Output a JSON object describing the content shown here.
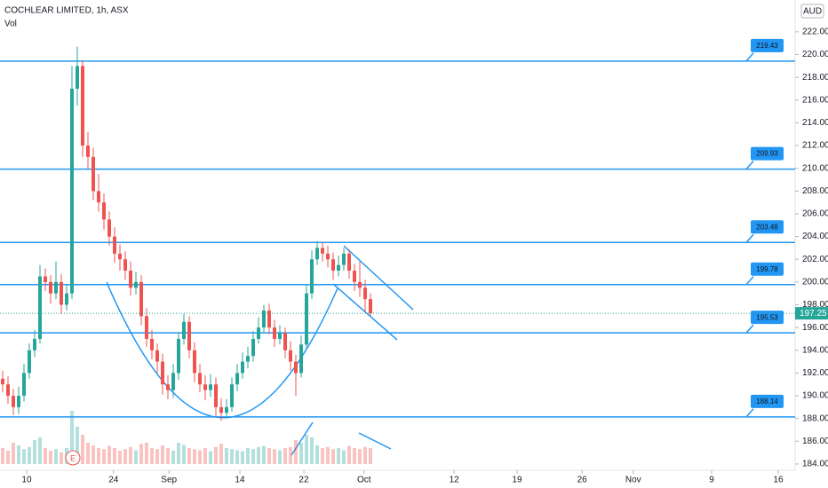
{
  "chart_data": {
    "type": "candlestick",
    "title": "COCHLEAR LIMITED, 1h, ASX",
    "volume_label": "Vol",
    "currency": "AUD",
    "event_marker": "E",
    "up_color": "#26a69a",
    "down_color": "#ef5350",
    "level_color": "#2196f3",
    "xlim": [
      -0.5,
      148.67
    ],
    "ylim": [
      183.45,
      224.8
    ],
    "xticks": [
      {
        "value": 4.5,
        "label": "10"
      },
      {
        "value": 20.8,
        "label": "24"
      },
      {
        "value": 31.2,
        "label": "Sep"
      },
      {
        "value": 44.5,
        "label": "14"
      },
      {
        "value": 56.5,
        "label": "22"
      },
      {
        "value": 67.8,
        "label": "Oct"
      },
      {
        "value": 84.7,
        "label": "12"
      },
      {
        "value": 96.5,
        "label": "19"
      },
      {
        "value": 108.7,
        "label": "26"
      },
      {
        "value": 118.3,
        "label": "Nov"
      },
      {
        "value": 133,
        "label": "9"
      },
      {
        "value": 145.5,
        "label": "16"
      }
    ],
    "yticks": [
      {
        "value": 184,
        "label": "184.00"
      },
      {
        "value": 186,
        "label": "186.00"
      },
      {
        "value": 188,
        "label": "188.00"
      },
      {
        "value": 190,
        "label": "190.00"
      },
      {
        "value": 192,
        "label": "192.00"
      },
      {
        "value": 194,
        "label": "194.00"
      },
      {
        "value": 196,
        "label": "196.00"
      },
      {
        "value": 198,
        "label": "198.00"
      },
      {
        "value": 200,
        "label": "200.00"
      },
      {
        "value": 202,
        "label": "202.00"
      },
      {
        "value": 204,
        "label": "204.00"
      },
      {
        "value": 206,
        "label": "206.00"
      },
      {
        "value": 208,
        "label": "208.00"
      },
      {
        "value": 210,
        "label": "210.00"
      },
      {
        "value": 212,
        "label": "212.00"
      },
      {
        "value": 214,
        "label": "214.00"
      },
      {
        "value": 216,
        "label": "216.00"
      },
      {
        "value": 218,
        "label": "218.00"
      },
      {
        "value": 220,
        "label": "220.00"
      },
      {
        "value": 222,
        "label": "222.00"
      }
    ],
    "levels": [
      219.43,
      209.93,
      203.48,
      199.78,
      195.53,
      188.14
    ],
    "open": [
      191.5,
      191,
      190,
      189,
      190,
      192,
      194,
      195,
      200.5,
      200,
      199,
      200,
      198,
      199,
      217,
      219,
      212,
      211,
      208,
      207,
      205.5,
      204,
      202.5,
      202,
      201,
      199.5,
      200,
      197,
      195,
      194,
      193,
      191,
      190.5,
      192,
      195,
      196.5,
      194,
      192,
      191,
      190.5,
      191,
      189,
      188.5,
      189,
      191,
      192,
      193,
      193.5,
      195,
      196,
      197.5,
      196,
      195,
      195.5,
      194,
      193,
      192,
      194.5,
      199,
      202,
      203,
      202.5,
      202,
      201,
      201.5,
      202.5,
      201,
      200,
      199.5,
      198.5
    ],
    "high": [
      192.2,
      191.7,
      190.6,
      190.8,
      192.8,
      194.6,
      195.8,
      201.5,
      201.2,
      200.6,
      201.8,
      200.7,
      199.8,
      219,
      220.7,
      219.5,
      213.2,
      211.8,
      209.5,
      207.8,
      206.2,
      204.8,
      203.3,
      202.7,
      201.8,
      200.9,
      200.6,
      197.7,
      195.8,
      194.6,
      193.7,
      191.8,
      192.8,
      195.6,
      197.2,
      197,
      194.7,
      192.8,
      191.8,
      191.9,
      191.6,
      189.8,
      189.7,
      191.6,
      192.8,
      193.8,
      194.3,
      195.7,
      196.9,
      198,
      198.1,
      196.7,
      196.2,
      196,
      194.8,
      193.6,
      195.3,
      199.8,
      202.8,
      203.6,
      203.5,
      203.2,
      202.6,
      202.3,
      203,
      202.9,
      201.6,
      201.8,
      200.2,
      199
    ],
    "low": [
      190.3,
      189.3,
      188.3,
      188.4,
      189.5,
      191.5,
      193.4,
      194.6,
      199.2,
      198.1,
      198.5,
      197.2,
      197.5,
      198.5,
      215.5,
      211,
      210,
      207.2,
      206.2,
      204.6,
      203.2,
      201.7,
      201,
      200.2,
      198.8,
      198.9,
      196.2,
      194.3,
      193.2,
      192,
      190.1,
      189.7,
      189.8,
      191.4,
      194.5,
      193.3,
      191.2,
      190.3,
      189.6,
      189.9,
      188.2,
      187.8,
      188,
      188.6,
      190.4,
      191.5,
      192.4,
      193,
      194.6,
      195.5,
      195.4,
      194.3,
      194.5,
      193.3,
      192.2,
      190,
      191.6,
      194,
      198.5,
      201.5,
      201.8,
      201.3,
      200.2,
      200.5,
      201,
      200.3,
      199.2,
      198.7,
      197.3,
      197
    ],
    "close": [
      191,
      190,
      189,
      190,
      192,
      194,
      195,
      200.5,
      200,
      199,
      200,
      198,
      199,
      217,
      219,
      212,
      211,
      208,
      207,
      205.5,
      204,
      202.5,
      202,
      201,
      199.5,
      200,
      197,
      195,
      194,
      193,
      191,
      190.5,
      192,
      195,
      196.5,
      194,
      192,
      191,
      190.5,
      191,
      189,
      188.5,
      189,
      191,
      192,
      193,
      193.5,
      195,
      196,
      197.5,
      196,
      195,
      195.5,
      194,
      193,
      192,
      194.5,
      199,
      202,
      203,
      202.5,
      202,
      201,
      201.5,
      202.5,
      201,
      200,
      199.5,
      198.5,
      197.25
    ],
    "volume": [
      30,
      25,
      40,
      35,
      28,
      32,
      45,
      50,
      30,
      25,
      28,
      22,
      30,
      100,
      70,
      55,
      40,
      35,
      30,
      28,
      34,
      30,
      25,
      28,
      32,
      26,
      38,
      40,
      30,
      28,
      35,
      30,
      25,
      40,
      36,
      30,
      28,
      26,
      30,
      24,
      32,
      38,
      30,
      28,
      26,
      24,
      30,
      28,
      32,
      34,
      30,
      28,
      26,
      30,
      32,
      45,
      40,
      55,
      50,
      35,
      30,
      32,
      28,
      30,
      26,
      34,
      30,
      28,
      32,
      30
    ]
  }
}
